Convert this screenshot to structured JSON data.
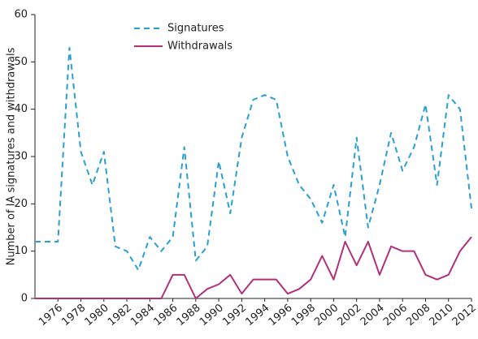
{
  "chart_data": {
    "type": "line",
    "y_label": "Number of IA signatures and withdrawals",
    "x": [
      1974,
      1975,
      1976,
      1977,
      1978,
      1979,
      1980,
      1981,
      1982,
      1983,
      1984,
      1985,
      1986,
      1987,
      1988,
      1989,
      1990,
      1991,
      1992,
      1993,
      1994,
      1995,
      1996,
      1997,
      1998,
      1999,
      2000,
      2001,
      2002,
      2003,
      2004,
      2005,
      2006,
      2007,
      2008,
      2009,
      2010,
      2011,
      2012
    ],
    "series": [
      {
        "name": "Signatures",
        "color": "#2a9fd0",
        "dashed": true,
        "values": [
          12,
          12,
          12,
          53,
          31,
          24,
          31,
          11,
          10,
          6,
          13,
          10,
          13,
          32,
          8,
          11,
          29,
          18,
          34,
          42,
          43,
          42,
          30,
          24,
          21,
          16,
          24,
          13,
          34,
          15,
          24,
          35,
          27,
          32,
          41,
          24,
          43,
          40,
          19
        ]
      },
      {
        "name": "Withdrawals",
        "color": "#b0307a",
        "dashed": false,
        "values": [
          0,
          0,
          0,
          0,
          0,
          0,
          0,
          0,
          0,
          0,
          0,
          0,
          5,
          5,
          0,
          2,
          3,
          5,
          1,
          4,
          4,
          4,
          1,
          2,
          4,
          9,
          4,
          12,
          7,
          12,
          5,
          11,
          10,
          10,
          5,
          4,
          5,
          10,
          13
        ]
      }
    ],
    "xlim": [
      1974,
      2012
    ],
    "xticks": [
      1976,
      1978,
      1980,
      1982,
      1984,
      1986,
      1988,
      1990,
      1992,
      1994,
      1996,
      1998,
      2000,
      2002,
      2004,
      2006,
      2008,
      2010,
      2012
    ],
    "ylim": [
      0,
      60
    ],
    "yticks": [
      0,
      10,
      20,
      30,
      40,
      50,
      60
    ],
    "legend": "top"
  }
}
